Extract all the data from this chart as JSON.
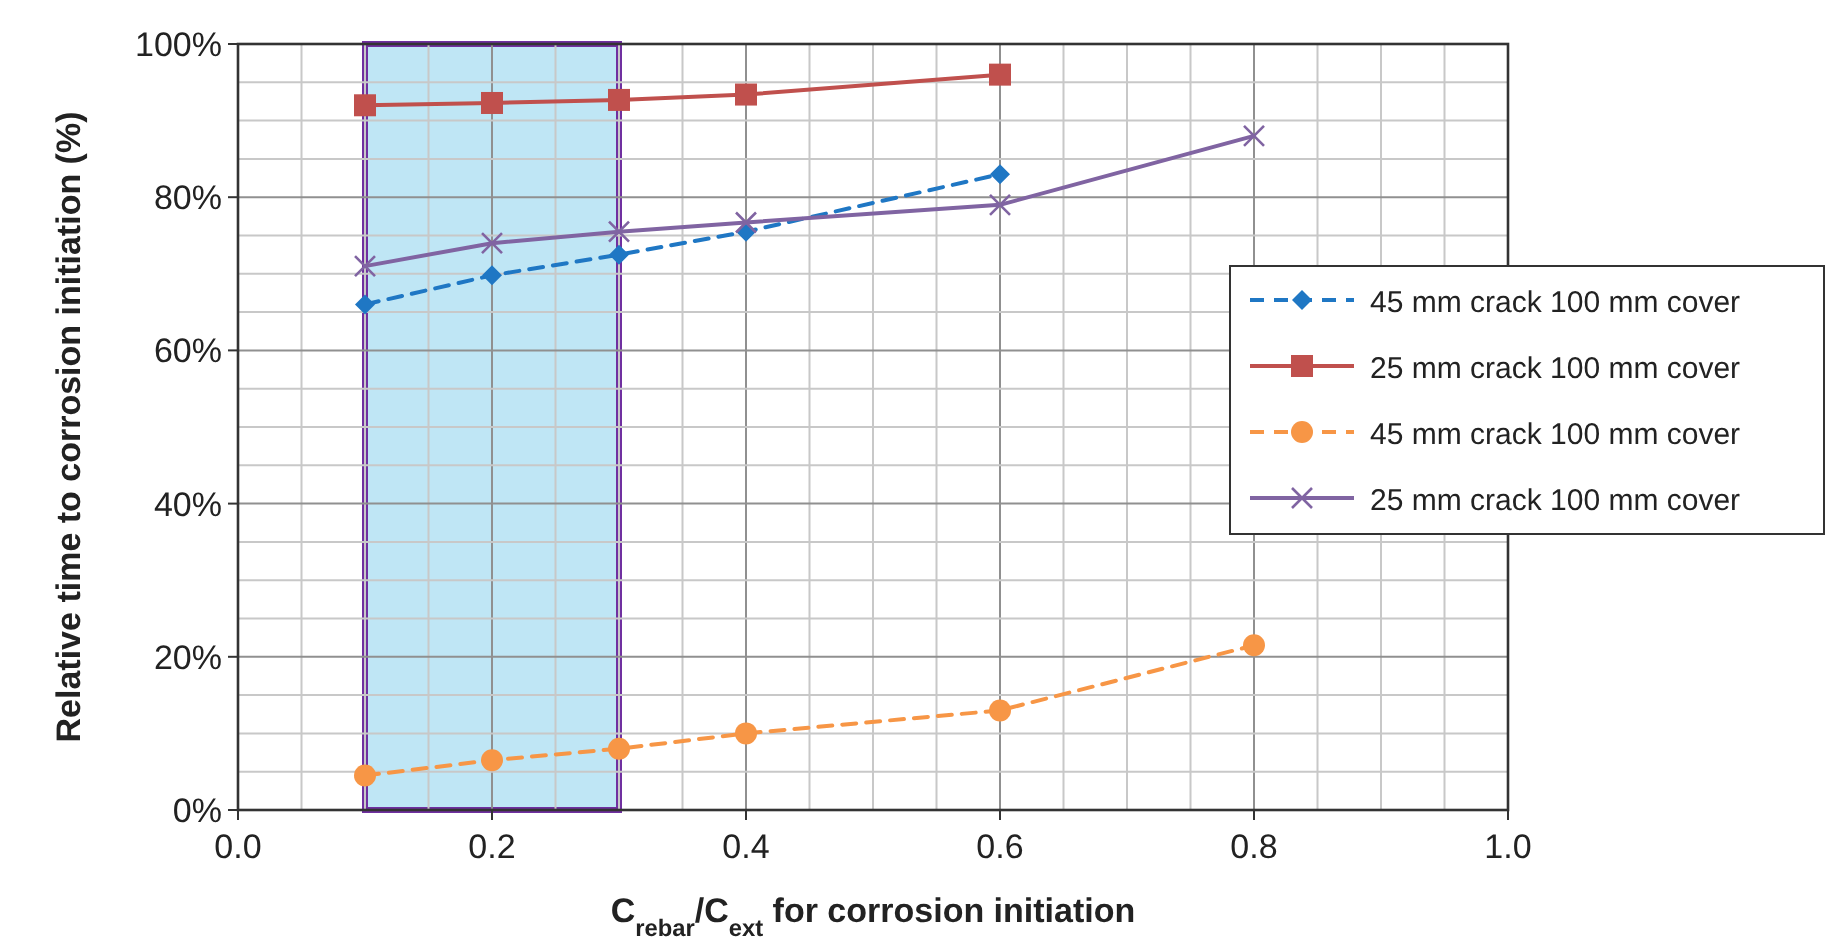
{
  "chart_data": {
    "type": "line",
    "xlabel": "C$_{rebar}$/C$_{ext}$ for corrosion initiation",
    "ylabel": "Relative time to corrosion initiation (%)",
    "series": [
      {
        "name": "45 mm crack 100 mm cover",
        "color": "#1f77c4",
        "x": [
          0.1,
          0.2,
          0.3,
          0.4,
          0.6
        ],
        "values": [
          66,
          69.8,
          72.5,
          75.5,
          83
        ],
        "marker": "diamond",
        "line_style": "dashed"
      },
      {
        "name": "25 mm crack 100 mm cover",
        "color": "#c0504d",
        "x": [
          0.1,
          0.2,
          0.3,
          0.4,
          0.6
        ],
        "values": [
          92,
          92.3,
          92.7,
          93.4,
          96
        ],
        "marker": "square",
        "line_style": "solid"
      },
      {
        "name": "45 mm crack 100 mm cover",
        "color": "#f79646",
        "x": [
          0.1,
          0.2,
          0.3,
          0.4,
          0.6,
          0.8
        ],
        "values": [
          4.5,
          6.5,
          8,
          10,
          13,
          21.5
        ],
        "marker": "circle",
        "line_style": "dashed"
      },
      {
        "name": "25 mm crack 100 mm cover",
        "color": "#8064a2",
        "x": [
          0.1,
          0.2,
          0.3,
          0.4,
          0.6,
          0.8
        ],
        "values": [
          71,
          74,
          75.5,
          76.7,
          79,
          88
        ],
        "marker": "cross",
        "line_style": "solid"
      }
    ],
    "xlim": [
      0,
      1
    ],
    "xticks": [
      {
        "value": 0,
        "label": "0.0"
      },
      {
        "value": 0.05,
        "label": null
      },
      {
        "value": 0.1,
        "label": null
      },
      {
        "value": 0.15,
        "label": null
      },
      {
        "value": 0.2,
        "label": "0.2"
      },
      {
        "value": 0.25,
        "label": null
      },
      {
        "value": 0.3,
        "label": null
      },
      {
        "value": 0.35,
        "label": null
      },
      {
        "value": 0.4,
        "label": "0.4"
      },
      {
        "value": 0.45,
        "label": null
      },
      {
        "value": 0.5,
        "label": null
      },
      {
        "value": 0.55,
        "label": null
      },
      {
        "value": 0.6,
        "label": "0.6"
      },
      {
        "value": 0.65,
        "label": null
      },
      {
        "value": 0.7,
        "label": null
      },
      {
        "value": 0.75,
        "label": null
      },
      {
        "value": 0.8,
        "label": "0.8"
      },
      {
        "value": 0.85,
        "label": null
      },
      {
        "value": 0.9,
        "label": null
      },
      {
        "value": 0.95,
        "label": null
      },
      {
        "value": 1,
        "label": "1.0"
      }
    ],
    "ylim": [
      0,
      100
    ],
    "yticks": [
      {
        "value": 0,
        "label": "0%"
      },
      {
        "value": 5,
        "label": null
      },
      {
        "value": 10,
        "label": null
      },
      {
        "value": 15,
        "label": null
      },
      {
        "value": 20,
        "label": "20%"
      },
      {
        "value": 25,
        "label": null
      },
      {
        "value": 30,
        "label": null
      },
      {
        "value": 35,
        "label": null
      },
      {
        "value": 40,
        "label": "40%"
      },
      {
        "value": 45,
        "label": null
      },
      {
        "value": 50,
        "label": null
      },
      {
        "value": 55,
        "label": null
      },
      {
        "value": 60,
        "label": "60%"
      },
      {
        "value": 65,
        "label": null
      },
      {
        "value": 70,
        "label": null
      },
      {
        "value": 75,
        "label": null
      },
      {
        "value": 80,
        "label": "80%"
      },
      {
        "value": 85,
        "label": null
      },
      {
        "value": 90,
        "label": null
      },
      {
        "value": 95,
        "label": null
      },
      {
        "value": 100,
        "label": "100%"
      }
    ],
    "bands": [
      {
        "axis": "x",
        "from": 0.1,
        "to": 0.3,
        "color": "#bfe6f5"
      }
    ],
    "grid": true,
    "legend": "right"
  }
}
